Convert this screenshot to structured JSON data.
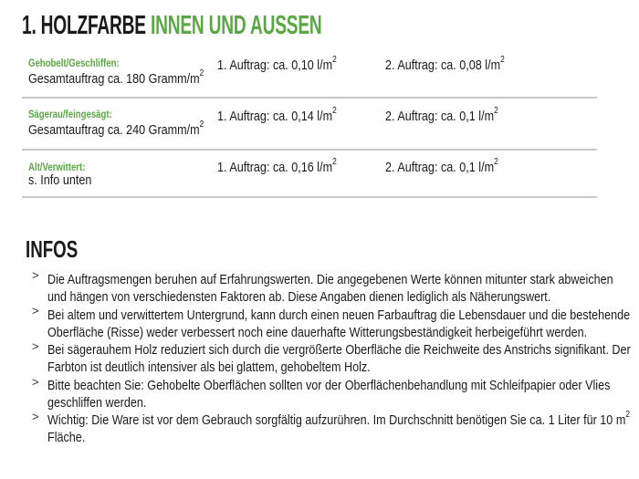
{
  "title": {
    "part1": "1. HOLZFARBE",
    "part2": "INNEN UND AUSSEN"
  },
  "colors": {
    "accent": "#5aa843",
    "text": "#1a1a1a",
    "rule": "#c8c8c8"
  },
  "rows": [
    {
      "label": "Gehobelt/Geschliffen:",
      "total": "Gesamtauftrag ca. 180 Gramm/m",
      "coat1": "1. Auftrag: ca. 0,10 l/m",
      "coat2": "2. Auftrag: ca. 0,08 l/m",
      "sup": "2"
    },
    {
      "label": "Sägerau/feingesägt:",
      "total": "Gesamtauftrag ca. 240 Gramm/m",
      "coat1": "1. Auftrag: ca. 0,14 l/m",
      "coat2": "2. Auftrag: ca. 0,1 l/m",
      "sup": "2"
    },
    {
      "label": "Alt/Verwittert:",
      "total": "s. Info unten",
      "coat1": "1. Auftrag: ca. 0,16 l/m",
      "coat2": "2. Auftrag: ca. 0,1 l/m",
      "sup": "2"
    }
  ],
  "infos": {
    "heading": "INFOS",
    "bullet_icon": "chevron-right",
    "bullet_glyph": ">",
    "lines": [
      "Die Auftragsmengen beruhen auf Erfahrungswerten. Die angegebenen Werte können mitunter stark abweichen",
      "und hängen von verschiedensten Faktoren ab. Diese Angaben dienen lediglich als Näherungswert.",
      "Bei altem und verwittertem Untergrund, kann durch einen neuen Farbauftrag die Lebensdauer und die bestehende",
      "Oberfläche (Risse) weder verbessert noch eine dauerhafte Witterungsbeständigkeit herbeigeführt werden.",
      "Bei sägerauhem Holz reduziert sich durch die vergrößerte Oberfläche die Reichweite des Anstrichs signifikant. Der",
      "Farbton ist deutlich intensiver als bei glattem, gehobeltem Holz.",
      "Bitte beachten Sie: Gehobelte Oberflächen sollten vor der Oberflächenbehandlung mit Schleifpapier oder Vlies",
      "geschliffen werden.",
      "Wichtig: Die Ware ist vor dem Gebrauch sorgfältig aufzurühren. Im Durchschnitt benötigen Sie ca. 1 Liter für 10 m",
      "Fläche."
    ],
    "last_sup": "2"
  }
}
